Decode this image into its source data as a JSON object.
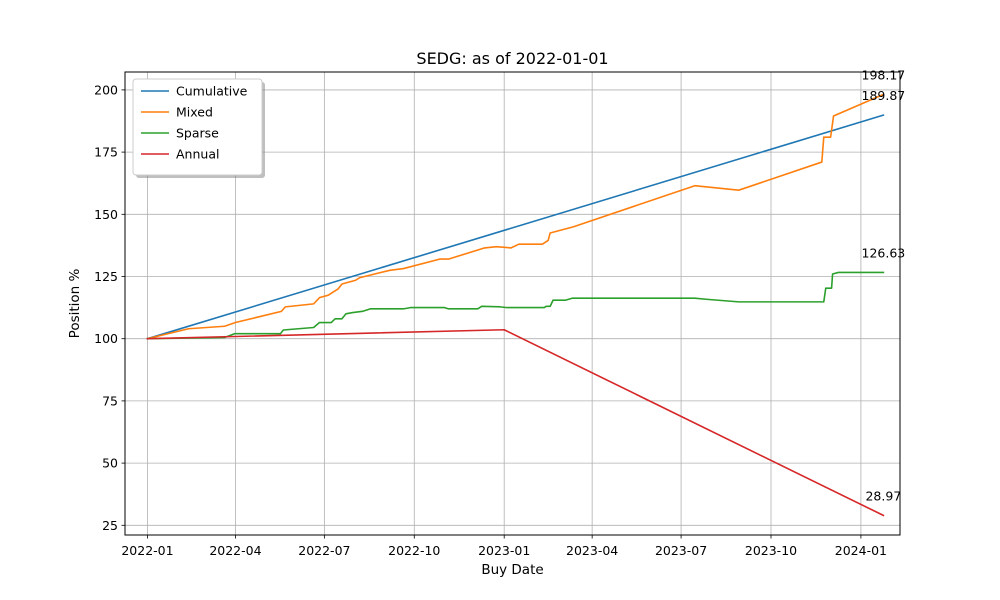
{
  "chart_data": {
    "type": "line",
    "title": "SEDG: as of 2022-01-01",
    "xlabel": "Buy Date",
    "ylabel": "Position %",
    "xlim": [
      "2021-12-09",
      "2024-02-10"
    ],
    "ylim": [
      21.1,
      207.2
    ],
    "x_ticks": [
      "2022-01",
      "2022-04",
      "2022-07",
      "2022-10",
      "2023-01",
      "2023-04",
      "2023-07",
      "2023-10",
      "2024-01"
    ],
    "y_ticks": [
      25,
      50,
      75,
      100,
      125,
      150,
      175,
      200
    ],
    "grid": true,
    "legend_position": "top-left",
    "series": [
      {
        "name": "Cumulative",
        "color": "#1f77b4",
        "points": [
          [
            "2022-01-01",
            100.0
          ],
          [
            "2024-01-24",
            189.87
          ]
        ],
        "end_label": "189.87"
      },
      {
        "name": "Mixed",
        "color": "#ff7f0e",
        "points": [
          [
            "2022-01-01",
            100.0
          ],
          [
            "2022-02-12",
            104.0
          ],
          [
            "2022-03-21",
            105.0
          ],
          [
            "2022-04-01",
            106.5
          ],
          [
            "2022-05-18",
            111.0
          ],
          [
            "2022-05-22",
            112.8
          ],
          [
            "2022-06-20",
            114.0
          ],
          [
            "2022-06-26",
            116.5
          ],
          [
            "2022-07-05",
            117.5
          ],
          [
            "2022-07-15",
            120.0
          ],
          [
            "2022-07-19",
            122.0
          ],
          [
            "2022-08-02",
            123.5
          ],
          [
            "2022-08-06",
            124.5
          ],
          [
            "2022-09-06",
            127.5
          ],
          [
            "2022-09-20",
            128.2
          ],
          [
            "2022-10-27",
            132.0
          ],
          [
            "2022-11-05",
            132.0
          ],
          [
            "2022-12-12",
            136.5
          ],
          [
            "2022-12-24",
            137.0
          ],
          [
            "2023-01-08",
            136.5
          ],
          [
            "2023-01-16",
            138.0
          ],
          [
            "2023-02-09",
            138.0
          ],
          [
            "2023-02-15",
            139.5
          ],
          [
            "2023-02-17",
            142.5
          ],
          [
            "2023-03-13",
            145.0
          ],
          [
            "2023-07-15",
            161.5
          ],
          [
            "2023-08-29",
            159.7
          ],
          [
            "2023-11-22",
            171.0
          ],
          [
            "2023-11-24",
            181.0
          ],
          [
            "2023-12-01",
            181.0
          ],
          [
            "2023-12-04",
            189.5
          ],
          [
            "2024-01-24",
            198.17
          ]
        ],
        "end_label": "198.17"
      },
      {
        "name": "Sparse",
        "color": "#2ca02c",
        "points": [
          [
            "2022-01-01",
            100.0
          ],
          [
            "2022-03-21",
            100.5
          ],
          [
            "2022-03-31",
            102.0
          ],
          [
            "2022-05-17",
            102.0
          ],
          [
            "2022-05-20",
            103.5
          ],
          [
            "2022-06-20",
            104.5
          ],
          [
            "2022-06-26",
            106.5
          ],
          [
            "2022-07-08",
            106.5
          ],
          [
            "2022-07-12",
            108.0
          ],
          [
            "2022-07-19",
            108.0
          ],
          [
            "2022-07-23",
            110.0
          ],
          [
            "2022-07-30",
            110.5
          ],
          [
            "2022-08-09",
            111.0
          ],
          [
            "2022-08-17",
            112.0
          ],
          [
            "2022-09-20",
            112.0
          ],
          [
            "2022-09-27",
            112.5
          ],
          [
            "2022-11-01",
            112.5
          ],
          [
            "2022-11-05",
            112.0
          ],
          [
            "2022-12-05",
            112.0
          ],
          [
            "2022-12-09",
            113.0
          ],
          [
            "2022-12-28",
            112.8
          ],
          [
            "2023-01-04",
            112.5
          ],
          [
            "2023-02-11",
            112.5
          ],
          [
            "2023-02-13",
            113.0
          ],
          [
            "2023-02-17",
            113.0
          ],
          [
            "2023-02-20",
            115.5
          ],
          [
            "2023-03-05",
            115.5
          ],
          [
            "2023-03-12",
            116.3
          ],
          [
            "2023-07-15",
            116.3
          ],
          [
            "2023-07-28",
            115.8
          ],
          [
            "2023-08-29",
            114.8
          ],
          [
            "2023-11-24",
            114.8
          ],
          [
            "2023-11-26",
            120.3
          ],
          [
            "2023-12-02",
            120.3
          ],
          [
            "2023-12-03",
            126.0
          ],
          [
            "2023-12-09",
            126.63
          ],
          [
            "2024-01-24",
            126.63
          ]
        ],
        "end_label": "126.63"
      },
      {
        "name": "Annual",
        "color": "#d62728",
        "points": [
          [
            "2022-01-01",
            100.0
          ],
          [
            "2023-01-01",
            103.6
          ],
          [
            "2024-01-24",
            28.97
          ]
        ],
        "end_label": "28.97"
      }
    ]
  }
}
